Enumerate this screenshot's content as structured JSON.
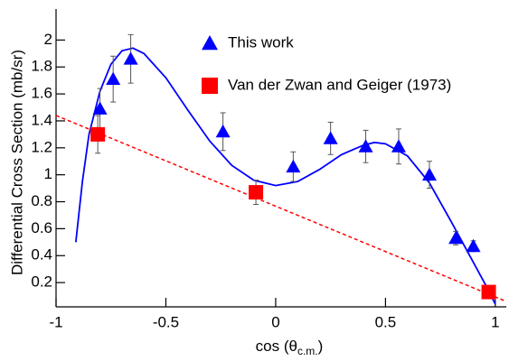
{
  "chart_data": {
    "type": "scatter",
    "ylabel": "Differential Cross Section (mb/sr)",
    "xlabel": [
      "cos (θ",
      "c.m.",
      ")"
    ],
    "xlim": [
      -1,
      1.05
    ],
    "ylim": [
      0.02,
      2.23
    ],
    "xticks": [
      -1,
      -0.5,
      0,
      0.5,
      1
    ],
    "yticks": [
      0.2,
      0.4,
      0.6,
      0.8,
      1,
      1.2,
      1.4,
      1.6,
      1.8,
      2
    ],
    "series": [
      {
        "name": "This work",
        "color": "#0000ff",
        "marker": "triangle",
        "x": [
          -0.8,
          -0.74,
          -0.66,
          -0.24,
          0.08,
          0.25,
          0.41,
          0.56,
          0.7,
          0.82,
          0.9
        ],
        "values": [
          1.49,
          1.71,
          1.86,
          1.32,
          1.06,
          1.27,
          1.21,
          1.21,
          1.0,
          0.53,
          0.47
        ],
        "errors": [
          0.15,
          0.17,
          0.18,
          0.14,
          0.11,
          0.12,
          0.12,
          0.13,
          0.1,
          0.05,
          0.04
        ]
      },
      {
        "name": "Van der Zwan and Geiger (1973)",
        "color": "#ff0000",
        "marker": "square",
        "x": [
          -0.81,
          -0.09,
          0.97
        ],
        "values": [
          1.3,
          0.87,
          0.13
        ],
        "errors": [
          0.14,
          0.09,
          0.02
        ]
      }
    ],
    "fit_curve": {
      "color": "#0000ff",
      "x": [
        -0.91,
        -0.88,
        -0.85,
        -0.8,
        -0.75,
        -0.7,
        -0.65,
        -0.6,
        -0.5,
        -0.4,
        -0.3,
        -0.2,
        -0.1,
        0,
        0.1,
        0.2,
        0.3,
        0.4,
        0.45,
        0.5,
        0.6,
        0.7,
        0.8,
        0.9,
        0.96,
        1.0
      ],
      "values": [
        0.5,
        0.95,
        1.3,
        1.62,
        1.82,
        1.92,
        1.94,
        1.9,
        1.72,
        1.48,
        1.25,
        1.07,
        0.96,
        0.92,
        0.95,
        1.04,
        1.15,
        1.22,
        1.24,
        1.23,
        1.14,
        0.94,
        0.65,
        0.35,
        0.17,
        0.04
      ]
    },
    "fit_line": {
      "color": "#ff0000",
      "dashed": true,
      "x": [
        -1,
        1.05
      ],
      "values": [
        1.44,
        0.06
      ]
    }
  }
}
